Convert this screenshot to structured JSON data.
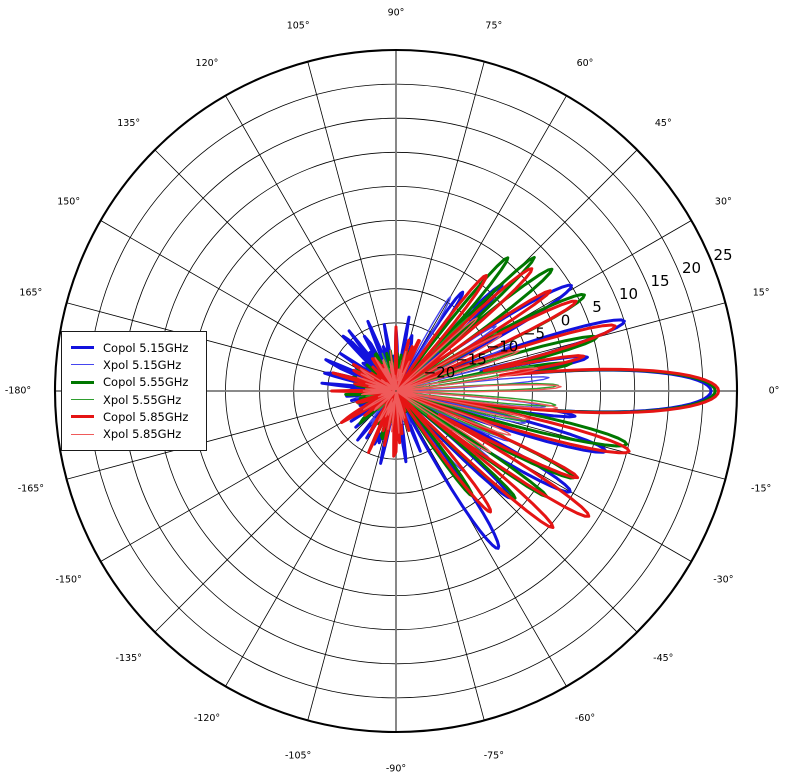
{
  "figure": {
    "kind": "polar antenna radiation pattern",
    "background": "#ffffff",
    "grid_color": "#000000",
    "cardinal_grid_color": "#7a7a7a",
    "outline_color": "#000000"
  },
  "legend": {
    "entries": [
      {
        "label": "Copol 5.15GHz",
        "color": "#1212dd",
        "line_width": 3.0
      },
      {
        "label": "Xpol 5.15GHz",
        "color": "#4545ef",
        "line_width": 1.4
      },
      {
        "label": "Copol 5.55GHz",
        "color": "#007700",
        "line_width": 3.0
      },
      {
        "label": "Xpol 5.55GHz",
        "color": "#2e9e2e",
        "line_width": 1.4
      },
      {
        "label": "Copol 5.85GHz",
        "color": "#e51414",
        "line_width": 3.0
      },
      {
        "label": "Xpol 5.85GHz",
        "color": "#ef5a5a",
        "line_width": 1.4
      }
    ]
  },
  "chart_data": {
    "type": "line",
    "subtype": "polar_radiation_pattern",
    "title": "",
    "angle_unit": "deg",
    "value_unit": "dB",
    "r_axis": {
      "min": -25,
      "max": 25,
      "ticks": [
        -20,
        -15,
        -10,
        -5,
        0,
        5,
        10,
        15,
        20,
        25
      ],
      "label_angle_deg": 22.5
    },
    "theta_axis": {
      "tick_step_deg": 15,
      "ticks": [
        {
          "deg": 0,
          "label": "0°"
        },
        {
          "deg": 15,
          "label": "15°"
        },
        {
          "deg": 30,
          "label": "30°"
        },
        {
          "deg": 45,
          "label": "45°"
        },
        {
          "deg": 60,
          "label": "60°"
        },
        {
          "deg": 75,
          "label": "75°"
        },
        {
          "deg": 90,
          "label": "90°"
        },
        {
          "deg": 105,
          "label": "105°"
        },
        {
          "deg": 120,
          "label": "120°"
        },
        {
          "deg": 135,
          "label": "135°"
        },
        {
          "deg": 150,
          "label": "150°"
        },
        {
          "deg": 165,
          "label": "165°"
        },
        {
          "deg": 180,
          "label": "-180°"
        },
        {
          "deg": 195,
          "label": "-165°"
        },
        {
          "deg": 210,
          "label": "-150°"
        },
        {
          "deg": 225,
          "label": "-135°"
        },
        {
          "deg": 240,
          "label": "-120°"
        },
        {
          "deg": 255,
          "label": "-105°"
        },
        {
          "deg": 270,
          "label": "-90°"
        },
        {
          "deg": 285,
          "label": "-75°"
        },
        {
          "deg": 300,
          "label": "-60°"
        },
        {
          "deg": 315,
          "label": "-45°"
        },
        {
          "deg": 330,
          "label": "-30°"
        },
        {
          "deg": 345,
          "label": "-15°"
        }
      ]
    },
    "encoding_note": "Each series is a gain-vs-angle pattern. lobes entries are [center_angle_deg, peak_dB, null_half_width_deg, optional_drop_dB]; gain falls parabolically from peak by drop_dB (default 50) at the half width. floor is the null/background level; back_noise_amp gives spiky backlobe noise beyond ±65°.",
    "series": [
      {
        "name": "Copol 5.15GHz",
        "color": "#1212dd",
        "line_width": 3.0,
        "main_lobe": {
          "angle_deg": 0,
          "peak_dB": 21.2
        },
        "lobes": [
          [
            0,
            21.2,
            8,
            30
          ],
          [
            10,
            3.5,
            4.5
          ],
          [
            17,
            10,
            6
          ],
          [
            31,
            5,
            6.5
          ],
          [
            45,
            -3,
            6
          ],
          [
            56,
            -7.5,
            6
          ],
          [
            -8,
            1.5,
            4
          ],
          [
            -16,
            7,
            6
          ],
          [
            -30,
            4.5,
            6.5
          ],
          [
            -43,
            -2,
            6
          ],
          [
            -57,
            2.5,
            7.5
          ]
        ],
        "floor": -24.6,
        "back_noise_amp": 11,
        "seed": 7
      },
      {
        "name": "Xpol 5.15GHz",
        "color": "#4545ef",
        "line_width": 1.4,
        "lobes": [
          [
            5,
            -2.5,
            4
          ],
          [
            13,
            -5,
            4
          ],
          [
            22,
            -6.5,
            4
          ],
          [
            33,
            -7.5,
            4.5
          ],
          [
            47,
            -8.5,
            5
          ],
          [
            60,
            -9,
            5
          ],
          [
            -6,
            -3,
            4
          ],
          [
            -14,
            -5.5,
            4
          ],
          [
            -24,
            -7,
            4.5
          ],
          [
            -36,
            -8,
            5
          ],
          [
            -50,
            -9.5,
            5
          ]
        ],
        "floor": -24.8,
        "back_noise_amp": 6,
        "seed": 31
      },
      {
        "name": "Copol 5.55GHz",
        "color": "#007700",
        "line_width": 3.0,
        "main_lobe": {
          "angle_deg": 0,
          "peak_dB": 21.8
        },
        "lobes": [
          [
            0,
            21.8,
            8,
            30
          ],
          [
            9,
            1,
            4
          ],
          [
            15,
            5.5,
            5
          ],
          [
            27,
            6,
            6
          ],
          [
            38,
            4,
            5
          ],
          [
            44,
            3.2,
            4
          ],
          [
            50,
            0.5,
            5
          ],
          [
            -13,
            9.7,
            6
          ],
          [
            -26,
            4,
            5.5
          ],
          [
            -35,
            2,
            4
          ],
          [
            -42,
            -1.5,
            5
          ],
          [
            -54,
            -6,
            6
          ]
        ],
        "floor": -24.6,
        "back_noise_amp": 7,
        "seed": 13
      },
      {
        "name": "Xpol 5.55GHz",
        "color": "#2e9e2e",
        "line_width": 1.4,
        "lobes": [
          [
            2,
            -1.2,
            4
          ],
          [
            10,
            -4.5,
            4
          ],
          [
            19,
            -6.5,
            4
          ],
          [
            30,
            -8,
            5
          ],
          [
            45,
            -9.5,
            5
          ],
          [
            -5,
            -1.5,
            4
          ],
          [
            -13,
            -5.5,
            4
          ],
          [
            -23,
            -7.5,
            5
          ],
          [
            -36,
            -9,
            5
          ]
        ],
        "floor": -24.8,
        "back_noise_amp": 6,
        "seed": 41
      },
      {
        "name": "Copol 5.85GHz",
        "color": "#e51414",
        "line_width": 3.0,
        "main_lobe": {
          "angle_deg": 0,
          "peak_dB": 22.3
        },
        "lobes": [
          [
            0,
            22.3,
            8,
            30
          ],
          [
            10.5,
            3,
            4
          ],
          [
            16.5,
            8.5,
            5.5
          ],
          [
            26.5,
            4.5,
            5
          ],
          [
            33,
            2,
            4
          ],
          [
            42,
            1.8,
            5.5
          ],
          [
            52,
            -3.5,
            6
          ],
          [
            -14.5,
            10.3,
            6
          ],
          [
            -25.5,
            4.5,
            4.5
          ],
          [
            -33,
            8.7,
            5.5
          ],
          [
            -41,
            5.5,
            5
          ],
          [
            -52,
            -2.5,
            6.5
          ]
        ],
        "floor": -24.6,
        "back_noise_amp": 9.5,
        "seed": 21
      },
      {
        "name": "Xpol 5.85GHz",
        "color": "#ef5a5a",
        "line_width": 1.4,
        "lobes": [
          [
            1.5,
            -0.8,
            4
          ],
          [
            9,
            -4,
            4
          ],
          [
            18,
            -6,
            4
          ],
          [
            28,
            -7.5,
            5
          ],
          [
            42,
            -9,
            5
          ],
          [
            -6,
            -1.2,
            4
          ],
          [
            -12,
            -5,
            4
          ],
          [
            -21,
            -7,
            5
          ],
          [
            -33,
            -8.5,
            5
          ]
        ],
        "floor": -24.8,
        "back_noise_amp": 6,
        "seed": 51
      }
    ],
    "layout_hints": {
      "zero_deg_position": "right",
      "angle_direction": "counterclockwise",
      "grid": true,
      "legend_position": "center-left",
      "r_tick_label_font_px": 15,
      "theta_tick_label_font_px": 9.5
    }
  }
}
